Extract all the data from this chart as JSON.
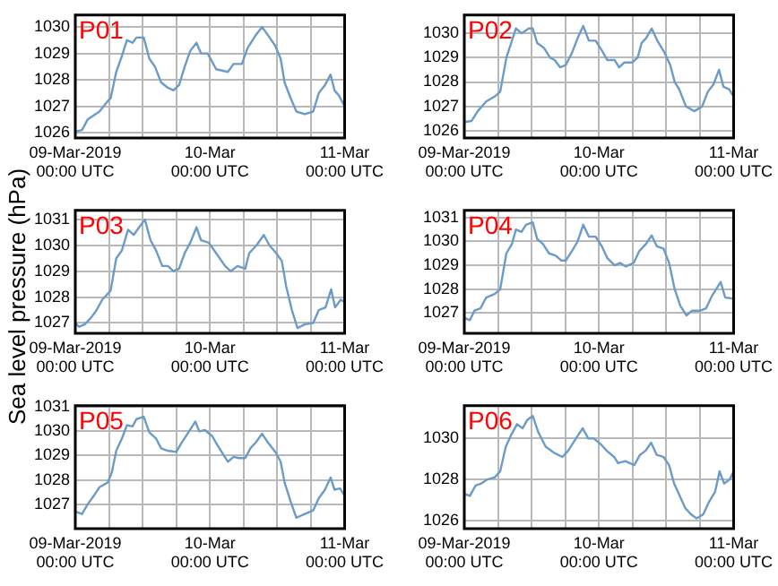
{
  "chart_data": [
    {
      "type": "line",
      "title": "P01",
      "xlim": [
        "2019-03-09T00:00",
        "2019-03-11T00:00"
      ],
      "ylim": [
        1025.8,
        1030.45
      ],
      "yticks": [
        1026,
        1027,
        1028,
        1029,
        1030
      ],
      "xticks": [
        {
          "value": "2019-03-09T00:00",
          "label": "09-Mar-2019\n00:00 UTC"
        },
        {
          "value": "2019-03-09T06:00",
          "label": null
        },
        {
          "value": "2019-03-09T12:00",
          "label": null
        },
        {
          "value": "2019-03-09T18:00",
          "label": null
        },
        {
          "value": "2019-03-10T00:00",
          "label": "10-Mar\n00:00 UTC"
        },
        {
          "value": "2019-03-10T06:00",
          "label": null
        },
        {
          "value": "2019-03-10T12:00",
          "label": null
        },
        {
          "value": "2019-03-10T18:00",
          "label": null
        },
        {
          "value": "2019-03-11T00:00",
          "label": "11-Mar\n00:00 UTC"
        }
      ],
      "grid": true,
      "legend": false,
      "marker": "none",
      "line_style": "solid",
      "series": [
        {
          "color": "#6b9bc8",
          "x": [
            "2019-03-09T00:00",
            "2019-03-09T01:12",
            "2019-03-09T02:12",
            "2019-03-09T04:18",
            "2019-03-09T05:48",
            "2019-03-09T06:18",
            "2019-03-09T07:18",
            "2019-03-09T08:18",
            "2019-03-09T09:12",
            "2019-03-09T10:12",
            "2019-03-09T10:54",
            "2019-03-09T12:12",
            "2019-03-09T13:12",
            "2019-03-09T14:12",
            "2019-03-09T15:18",
            "2019-03-09T16:30",
            "2019-03-09T17:30",
            "2019-03-09T18:30",
            "2019-03-09T19:30",
            "2019-03-09T20:30",
            "2019-03-09T21:36",
            "2019-03-09T22:24",
            "2019-03-09T23:36",
            "2019-03-10T01:06",
            "2019-03-10T03:12",
            "2019-03-10T04:12",
            "2019-03-10T05:42",
            "2019-03-10T06:42",
            "2019-03-10T08:12",
            "2019-03-10T09:18",
            "2019-03-10T10:18",
            "2019-03-10T11:36",
            "2019-03-10T12:36",
            "2019-03-10T13:18",
            "2019-03-10T14:24",
            "2019-03-10T15:24",
            "2019-03-10T16:54",
            "2019-03-10T18:24",
            "2019-03-10T19:24",
            "2019-03-10T20:30",
            "2019-03-10T21:30",
            "2019-03-10T22:12",
            "2019-03-10T23:00",
            "2019-03-11T00:00"
          ],
          "values": [
            1026.05,
            1026.1,
            1026.5,
            1026.8,
            1027.2,
            1027.3,
            1028.3,
            1028.9,
            1029.5,
            1029.4,
            1029.6,
            1029.6,
            1028.8,
            1028.5,
            1027.9,
            1027.7,
            1027.6,
            1027.8,
            1028.5,
            1029.1,
            1029.4,
            1029.0,
            1029.0,
            1028.4,
            1028.3,
            1028.6,
            1028.6,
            1029.2,
            1029.7,
            1030.0,
            1029.7,
            1029.3,
            1028.8,
            1027.9,
            1027.3,
            1026.8,
            1026.7,
            1026.8,
            1027.5,
            1027.8,
            1028.2,
            1027.6,
            1027.4,
            1027.0
          ]
        }
      ]
    },
    {
      "type": "line",
      "title": "P02",
      "xlim": [
        "2019-03-09T00:00",
        "2019-03-11T00:00"
      ],
      "ylim": [
        1025.7,
        1030.75
      ],
      "yticks": [
        1026,
        1027,
        1028,
        1029,
        1030
      ],
      "xticks": [
        {
          "value": "2019-03-09T00:00",
          "label": "09-Mar-2019\n00:00 UTC"
        },
        {
          "value": "2019-03-09T06:00",
          "label": null
        },
        {
          "value": "2019-03-09T12:00",
          "label": null
        },
        {
          "value": "2019-03-09T18:00",
          "label": null
        },
        {
          "value": "2019-03-10T00:00",
          "label": "10-Mar\n00:00 UTC"
        },
        {
          "value": "2019-03-10T06:00",
          "label": null
        },
        {
          "value": "2019-03-10T12:00",
          "label": null
        },
        {
          "value": "2019-03-10T18:00",
          "label": null
        },
        {
          "value": "2019-03-11T00:00",
          "label": "11-Mar\n00:00 UTC"
        }
      ],
      "grid": true,
      "legend": false,
      "marker": "none",
      "line_style": "solid",
      "series": [
        {
          "color": "#6b9bc8",
          "x": [
            "2019-03-09T00:00",
            "2019-03-09T01:18",
            "2019-03-09T02:24",
            "2019-03-09T03:54",
            "2019-03-09T05:24",
            "2019-03-09T06:24",
            "2019-03-09T07:30",
            "2019-03-09T08:30",
            "2019-03-09T09:12",
            "2019-03-09T10:12",
            "2019-03-09T11:30",
            "2019-03-09T12:12",
            "2019-03-09T13:00",
            "2019-03-09T14:12",
            "2019-03-09T15:18",
            "2019-03-09T16:06",
            "2019-03-09T17:06",
            "2019-03-09T18:06",
            "2019-03-09T19:12",
            "2019-03-09T20:12",
            "2019-03-09T21:12",
            "2019-03-09T22:12",
            "2019-03-09T23:24",
            "2019-03-10T00:30",
            "2019-03-10T01:30",
            "2019-03-10T02:48",
            "2019-03-10T03:36",
            "2019-03-10T04:30",
            "2019-03-10T05:54",
            "2019-03-10T06:54",
            "2019-03-10T07:36",
            "2019-03-10T08:24",
            "2019-03-10T09:24",
            "2019-03-10T10:24",
            "2019-03-10T11:42",
            "2019-03-10T12:42",
            "2019-03-10T13:30",
            "2019-03-10T14:18",
            "2019-03-10T15:30",
            "2019-03-10T17:00",
            "2019-03-10T18:24",
            "2019-03-10T19:24",
            "2019-03-10T20:24",
            "2019-03-10T21:24",
            "2019-03-10T22:12",
            "2019-03-10T23:12",
            "2019-03-11T00:00"
          ],
          "values": [
            1026.35,
            1026.4,
            1026.8,
            1027.2,
            1027.4,
            1027.6,
            1029.0,
            1029.7,
            1030.2,
            1030.0,
            1030.2,
            1030.2,
            1029.6,
            1029.4,
            1029.0,
            1028.9,
            1028.6,
            1028.7,
            1029.2,
            1029.8,
            1030.3,
            1029.7,
            1029.7,
            1029.3,
            1028.9,
            1028.9,
            1028.6,
            1028.8,
            1028.8,
            1029.0,
            1029.6,
            1029.8,
            1030.2,
            1029.7,
            1029.2,
            1028.7,
            1028.0,
            1027.7,
            1027.0,
            1026.8,
            1027.0,
            1027.6,
            1027.9,
            1028.5,
            1027.8,
            1027.7,
            1027.4
          ]
        }
      ]
    },
    {
      "type": "line",
      "title": "P03",
      "ylabel": "Sea level pressure (hPa)",
      "xlim": [
        "2019-03-09T00:00",
        "2019-03-11T00:00"
      ],
      "ylim": [
        1026.6,
        1031.35
      ],
      "yticks": [
        1027,
        1028,
        1029,
        1030,
        1031
      ],
      "xticks": [
        {
          "value": "2019-03-09T00:00",
          "label": "09-Mar-2019\n00:00 UTC"
        },
        {
          "value": "2019-03-09T06:00",
          "label": null
        },
        {
          "value": "2019-03-09T12:00",
          "label": null
        },
        {
          "value": "2019-03-09T18:00",
          "label": null
        },
        {
          "value": "2019-03-10T00:00",
          "label": "10-Mar\n00:00 UTC"
        },
        {
          "value": "2019-03-10T06:00",
          "label": null
        },
        {
          "value": "2019-03-10T12:00",
          "label": null
        },
        {
          "value": "2019-03-10T18:00",
          "label": null
        },
        {
          "value": "2019-03-11T00:00",
          "label": "11-Mar\n00:00 UTC"
        }
      ],
      "grid": true,
      "legend": false,
      "marker": "none",
      "line_style": "solid",
      "series": [
        {
          "color": "#6b9bc8",
          "x": [
            "2019-03-09T00:00",
            "2019-03-09T00:42",
            "2019-03-09T01:42",
            "2019-03-09T02:48",
            "2019-03-09T03:48",
            "2019-03-09T04:48",
            "2019-03-09T06:18",
            "2019-03-09T07:18",
            "2019-03-09T08:18",
            "2019-03-09T09:24",
            "2019-03-09T10:24",
            "2019-03-09T11:24",
            "2019-03-09T12:24",
            "2019-03-09T13:24",
            "2019-03-09T14:24",
            "2019-03-09T15:30",
            "2019-03-09T16:30",
            "2019-03-09T17:30",
            "2019-03-09T18:30",
            "2019-03-09T19:30",
            "2019-03-09T20:30",
            "2019-03-09T21:36",
            "2019-03-09T22:24",
            "2019-03-09T23:48",
            "2019-03-10T01:06",
            "2019-03-10T02:42",
            "2019-03-10T03:42",
            "2019-03-10T04:54",
            "2019-03-10T06:18",
            "2019-03-10T07:00",
            "2019-03-10T08:18",
            "2019-03-10T09:36",
            "2019-03-10T10:36",
            "2019-03-10T11:48",
            "2019-03-10T12:48",
            "2019-03-10T13:36",
            "2019-03-10T14:36",
            "2019-03-10T15:36",
            "2019-03-10T16:54",
            "2019-03-10T18:24",
            "2019-03-10T19:24",
            "2019-03-10T20:36",
            "2019-03-10T21:36",
            "2019-03-10T22:18",
            "2019-03-10T23:18",
            "2019-03-11T00:00"
          ],
          "values": [
            1027.0,
            1026.85,
            1026.95,
            1027.2,
            1027.5,
            1027.9,
            1028.25,
            1029.5,
            1029.8,
            1030.6,
            1030.4,
            1030.7,
            1031.0,
            1030.2,
            1029.8,
            1029.2,
            1029.2,
            1029.0,
            1029.1,
            1029.7,
            1030.1,
            1030.7,
            1030.2,
            1030.1,
            1029.7,
            1029.2,
            1029.0,
            1029.2,
            1029.1,
            1029.7,
            1030.0,
            1030.4,
            1030.0,
            1029.7,
            1029.4,
            1028.4,
            1027.5,
            1026.8,
            1026.95,
            1027.0,
            1027.5,
            1027.6,
            1028.3,
            1027.6,
            1027.9,
            1027.8
          ]
        }
      ]
    },
    {
      "type": "line",
      "title": "P04",
      "xlim": [
        "2019-03-09T00:00",
        "2019-03-11T00:00"
      ],
      "ylim": [
        1026.15,
        1031.3
      ],
      "yticks": [
        1027,
        1028,
        1029,
        1030,
        1031
      ],
      "xticks": [
        {
          "value": "2019-03-09T00:00",
          "label": "09-Mar-2019\n00:00 UTC"
        },
        {
          "value": "2019-03-09T06:00",
          "label": null
        },
        {
          "value": "2019-03-09T12:00",
          "label": null
        },
        {
          "value": "2019-03-09T18:00",
          "label": null
        },
        {
          "value": "2019-03-10T00:00",
          "label": "10-Mar\n00:00 UTC"
        },
        {
          "value": "2019-03-10T06:00",
          "label": null
        },
        {
          "value": "2019-03-10T12:00",
          "label": null
        },
        {
          "value": "2019-03-10T18:00",
          "label": null
        },
        {
          "value": "2019-03-11T00:00",
          "label": "11-Mar\n00:00 UTC"
        }
      ],
      "grid": true,
      "legend": false,
      "marker": "none",
      "line_style": "solid",
      "series": [
        {
          "color": "#6b9bc8",
          "x": [
            "2019-03-09T00:00",
            "2019-03-09T01:00",
            "2019-03-09T01:48",
            "2019-03-09T02:54",
            "2019-03-09T03:54",
            "2019-03-09T05:24",
            "2019-03-09T06:24",
            "2019-03-09T07:30",
            "2019-03-09T08:30",
            "2019-03-09T09:12",
            "2019-03-09T10:12",
            "2019-03-09T11:00",
            "2019-03-09T12:12",
            "2019-03-09T13:00",
            "2019-03-09T14:00",
            "2019-03-09T15:06",
            "2019-03-09T16:18",
            "2019-03-09T17:18",
            "2019-03-09T18:06",
            "2019-03-09T19:12",
            "2019-03-09T20:12",
            "2019-03-09T21:12",
            "2019-03-09T22:12",
            "2019-03-09T23:24",
            "2019-03-10T00:30",
            "2019-03-10T01:30",
            "2019-03-10T02:48",
            "2019-03-10T03:48",
            "2019-03-10T04:48",
            "2019-03-10T06:12",
            "2019-03-10T07:12",
            "2019-03-10T08:24",
            "2019-03-10T09:24",
            "2019-03-10T10:18",
            "2019-03-10T11:30",
            "2019-03-10T12:30",
            "2019-03-10T13:30",
            "2019-03-10T14:30",
            "2019-03-10T15:36",
            "2019-03-10T16:36",
            "2019-03-10T18:06",
            "2019-03-10T19:06",
            "2019-03-10T20:06",
            "2019-03-10T21:42",
            "2019-03-10T22:30",
            "2019-03-11T00:00"
          ],
          "values": [
            1026.8,
            1026.7,
            1027.1,
            1027.2,
            1027.65,
            1027.8,
            1028.0,
            1029.5,
            1029.9,
            1030.5,
            1030.4,
            1030.7,
            1030.8,
            1030.1,
            1029.9,
            1029.5,
            1029.4,
            1029.2,
            1029.2,
            1029.6,
            1030.0,
            1030.7,
            1030.2,
            1030.2,
            1029.8,
            1029.3,
            1029.0,
            1029.1,
            1028.95,
            1029.1,
            1029.6,
            1029.9,
            1030.25,
            1029.8,
            1029.7,
            1029.1,
            1028.0,
            1027.3,
            1026.9,
            1027.1,
            1027.1,
            1027.2,
            1027.7,
            1028.3,
            1027.65,
            1027.6
          ]
        }
      ]
    },
    {
      "type": "line",
      "title": "P05",
      "xlim": [
        "2019-03-09T00:00",
        "2019-03-11T00:00"
      ],
      "ylim": [
        1026.0,
        1031.05
      ],
      "yticks": [
        1027,
        1028,
        1029,
        1030,
        1031
      ],
      "xticks": [
        {
          "value": "2019-03-09T00:00",
          "label": "09-Mar-2019\n00:00 UTC"
        },
        {
          "value": "2019-03-09T06:00",
          "label": null
        },
        {
          "value": "2019-03-09T12:00",
          "label": null
        },
        {
          "value": "2019-03-09T18:00",
          "label": null
        },
        {
          "value": "2019-03-10T00:00",
          "label": "10-Mar\n00:00 UTC"
        },
        {
          "value": "2019-03-10T06:00",
          "label": null
        },
        {
          "value": "2019-03-10T12:00",
          "label": null
        },
        {
          "value": "2019-03-10T18:00",
          "label": null
        },
        {
          "value": "2019-03-11T00:00",
          "label": "11-Mar\n00:00 UTC"
        }
      ],
      "grid": true,
      "legend": false,
      "marker": "none",
      "line_style": "solid",
      "series": [
        {
          "color": "#6b9bc8",
          "x": [
            "2019-03-09T00:00",
            "2019-03-09T01:12",
            "2019-03-09T02:12",
            "2019-03-09T03:18",
            "2019-03-09T04:18",
            "2019-03-09T05:48",
            "2019-03-09T06:30",
            "2019-03-09T07:18",
            "2019-03-09T08:18",
            "2019-03-09T09:12",
            "2019-03-09T10:12",
            "2019-03-09T10:54",
            "2019-03-09T12:12",
            "2019-03-09T13:12",
            "2019-03-09T14:24",
            "2019-03-09T15:18",
            "2019-03-09T16:30",
            "2019-03-09T18:00",
            "2019-03-09T19:00",
            "2019-03-09T20:00",
            "2019-03-09T21:24",
            "2019-03-09T22:06",
            "2019-03-09T23:06",
            "2019-03-10T00:24",
            "2019-03-10T01:24",
            "2019-03-10T03:12",
            "2019-03-10T04:12",
            "2019-03-10T05:12",
            "2019-03-10T06:18",
            "2019-03-10T07:12",
            "2019-03-10T08:12",
            "2019-03-10T09:18",
            "2019-03-10T10:18",
            "2019-03-10T11:48",
            "2019-03-10T12:36",
            "2019-03-10T13:18",
            "2019-03-10T14:24",
            "2019-03-10T15:24",
            "2019-03-10T16:54",
            "2019-03-10T18:24",
            "2019-03-10T19:24",
            "2019-03-10T20:30",
            "2019-03-10T21:30",
            "2019-03-10T22:12",
            "2019-03-10T23:12",
            "2019-03-11T00:00"
          ],
          "values": [
            1026.7,
            1026.6,
            1027.0,
            1027.35,
            1027.7,
            1027.9,
            1028.3,
            1029.2,
            1029.7,
            1030.25,
            1030.2,
            1030.5,
            1030.6,
            1029.95,
            1029.7,
            1029.3,
            1029.2,
            1029.15,
            1029.55,
            1029.9,
            1030.4,
            1030.0,
            1030.05,
            1029.8,
            1029.4,
            1028.75,
            1028.95,
            1028.9,
            1028.9,
            1029.3,
            1029.55,
            1029.9,
            1029.55,
            1029.1,
            1028.75,
            1027.9,
            1027.1,
            1026.45,
            1026.6,
            1026.75,
            1027.25,
            1027.6,
            1028.1,
            1027.6,
            1027.65,
            1027.35
          ]
        }
      ]
    },
    {
      "type": "line",
      "title": "P06",
      "xlim": [
        "2019-03-09T00:00",
        "2019-03-11T00:00"
      ],
      "ylim": [
        1025.6,
        1031.6
      ],
      "yticks": [
        1026,
        1028,
        1030
      ],
      "xticks": [
        {
          "value": "2019-03-09T00:00",
          "label": "09-Mar-2019\n00:00 UTC"
        },
        {
          "value": "2019-03-09T06:00",
          "label": null
        },
        {
          "value": "2019-03-09T12:00",
          "label": null
        },
        {
          "value": "2019-03-09T18:00",
          "label": null
        },
        {
          "value": "2019-03-10T00:00",
          "label": "10-Mar\n00:00 UTC"
        },
        {
          "value": "2019-03-10T06:00",
          "label": null
        },
        {
          "value": "2019-03-10T12:00",
          "label": null
        },
        {
          "value": "2019-03-10T18:00",
          "label": null
        },
        {
          "value": "2019-03-11T00:00",
          "label": "11-Mar\n00:00 UTC"
        }
      ],
      "grid": true,
      "legend": false,
      "marker": "none",
      "line_style": "solid",
      "series": [
        {
          "color": "#6b9bc8",
          "x": [
            "2019-03-09T00:00",
            "2019-03-09T01:00",
            "2019-03-09T02:00",
            "2019-03-09T03:00",
            "2019-03-09T04:06",
            "2019-03-09T05:24",
            "2019-03-09T06:24",
            "2019-03-09T07:24",
            "2019-03-09T08:24",
            "2019-03-09T09:24",
            "2019-03-09T10:24",
            "2019-03-09T11:12",
            "2019-03-09T12:12",
            "2019-03-09T13:12",
            "2019-03-09T14:30",
            "2019-03-09T16:00",
            "2019-03-09T17:30",
            "2019-03-09T18:30",
            "2019-03-09T19:54",
            "2019-03-09T21:06",
            "2019-03-09T22:06",
            "2019-03-09T23:06",
            "2019-03-10T00:24",
            "2019-03-10T01:24",
            "2019-03-10T02:42",
            "2019-03-10T03:24",
            "2019-03-10T04:42",
            "2019-03-10T06:18",
            "2019-03-10T07:18",
            "2019-03-10T08:18",
            "2019-03-10T09:18",
            "2019-03-10T10:18",
            "2019-03-10T11:30",
            "2019-03-10T12:30",
            "2019-03-10T13:24",
            "2019-03-10T14:24",
            "2019-03-10T15:24",
            "2019-03-10T16:24",
            "2019-03-10T17:24",
            "2019-03-10T18:36",
            "2019-03-10T19:36",
            "2019-03-10T20:42",
            "2019-03-10T21:30",
            "2019-03-10T22:18",
            "2019-03-10T23:18",
            "2019-03-11T00:00"
          ],
          "values": [
            1027.3,
            1027.2,
            1027.7,
            1027.8,
            1028.0,
            1028.1,
            1028.4,
            1029.6,
            1030.2,
            1030.7,
            1030.5,
            1030.9,
            1031.1,
            1030.3,
            1029.6,
            1029.3,
            1029.1,
            1029.4,
            1030.0,
            1030.5,
            1030.0,
            1030.0,
            1029.7,
            1029.4,
            1029.1,
            1028.8,
            1028.9,
            1028.7,
            1029.2,
            1029.4,
            1029.8,
            1029.2,
            1029.1,
            1028.7,
            1027.8,
            1027.2,
            1026.6,
            1026.3,
            1026.1,
            1026.3,
            1026.9,
            1027.4,
            1028.4,
            1027.8,
            1028.0,
            1028.4
          ]
        }
      ]
    }
  ]
}
